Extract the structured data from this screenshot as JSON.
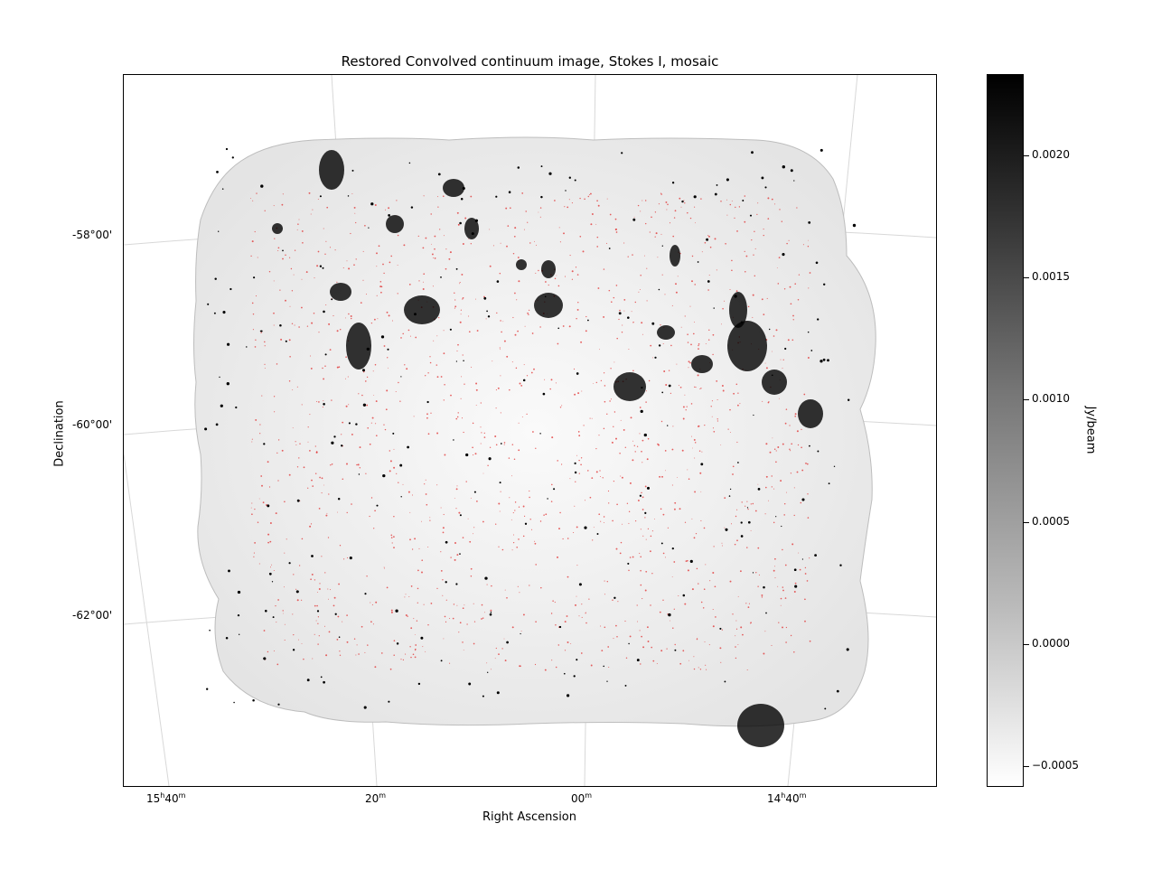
{
  "figure": {
    "title": "Restored Convolved continuum image, Stokes I, mosaic",
    "xlabel": "Right Ascension",
    "ylabel": "Declination",
    "x_ticks": [
      {
        "h": "15",
        "hsup": "h",
        "m": "40",
        "msup": "m"
      },
      {
        "h": "",
        "hsup": "",
        "m": "20",
        "msup": "m"
      },
      {
        "h": "",
        "hsup": "",
        "m": "00",
        "msup": "m"
      },
      {
        "h": "14",
        "hsup": "h",
        "m": "40",
        "msup": "m"
      }
    ],
    "y_ticks": [
      "-58°00'",
      "-60°00'",
      "-62°00'"
    ],
    "colorbar": {
      "label": "Jy/beam",
      "ticks": [
        "0.0020",
        "0.0015",
        "0.0010",
        "0.0005",
        "0.0000",
        "−0.0005"
      ]
    }
  },
  "colors": {
    "sources": "#e02020",
    "emission": "#000000",
    "background": "#ffffff"
  }
}
